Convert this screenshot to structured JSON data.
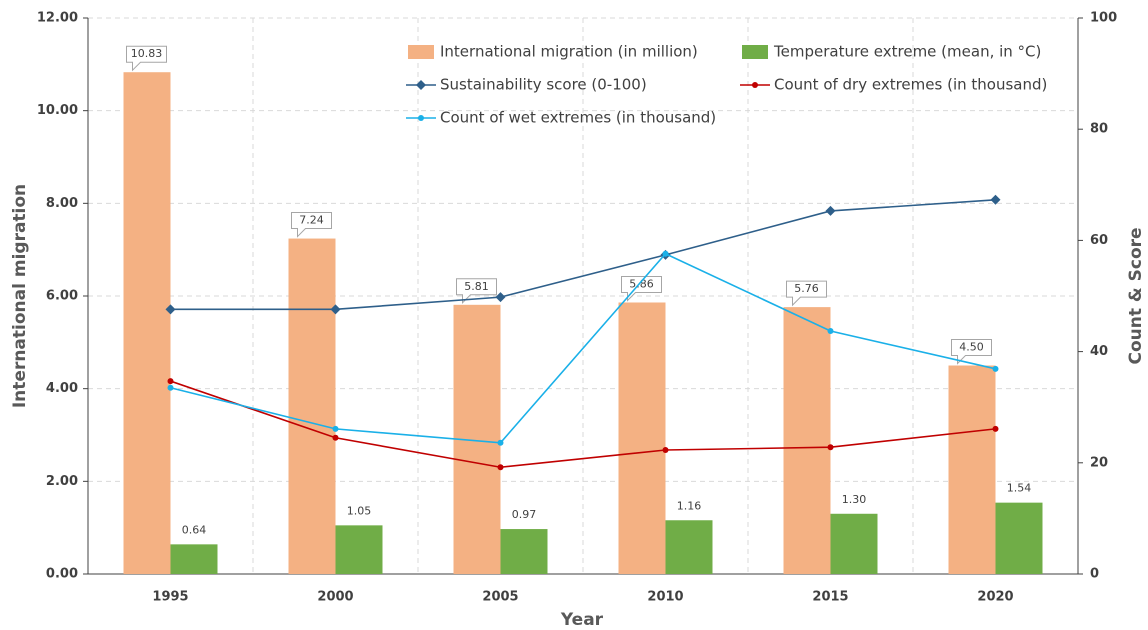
{
  "chart_data": {
    "type": "bar-line",
    "x_label": "Year",
    "y_label": "International migration",
    "y2_label": "Count & Score",
    "categories": [
      "1995",
      "2000",
      "2005",
      "2010",
      "2015",
      "2020"
    ],
    "series": [
      {
        "name": "International migration (in million)",
        "kind": "bar",
        "color": "#f4b183",
        "values": [
          10.83,
          7.24,
          5.81,
          5.86,
          5.76,
          4.5
        ],
        "value_labels": [
          "10.83",
          "7.24",
          "5.81",
          "5.86",
          "5.76",
          "4.50"
        ]
      },
      {
        "name": "Temperature extreme (mean, in °C)",
        "kind": "bar",
        "color": "#70ad47",
        "values": [
          0.64,
          1.05,
          0.97,
          1.16,
          1.3,
          1.54
        ],
        "value_labels": [
          "0.64",
          "1.05",
          "0.97",
          "1.16",
          "1.30",
          "1.54"
        ]
      },
      {
        "name": "Sustainability score (0-100)",
        "kind": "line",
        "marker": "diamond",
        "axis": "y2",
        "color": "#2e5f8a",
        "values": [
          47.6,
          47.6,
          49.8,
          57.4,
          65.3,
          67.3
        ]
      },
      {
        "name": "Count of dry extremes (in thousand)",
        "kind": "line",
        "marker": "circle",
        "axis": "y2",
        "color": "#c00000",
        "values": [
          34.7,
          24.5,
          19.2,
          22.3,
          22.8,
          26.1
        ]
      },
      {
        "name": "Count of wet extremes (in thousand)",
        "kind": "line",
        "marker": "circle",
        "axis": "y2",
        "color": "#1ab0e8",
        "values": [
          33.5,
          26.1,
          23.6,
          57.6,
          43.7,
          36.9
        ]
      }
    ],
    "ylim": [
      0,
      12
    ],
    "yticks": [
      {
        "value": 0,
        "label": "0.00"
      },
      {
        "value": 2,
        "label": "2.00"
      },
      {
        "value": 4,
        "label": "4.00"
      },
      {
        "value": 6,
        "label": "6.00"
      },
      {
        "value": 8,
        "label": "8.00"
      },
      {
        "value": 10,
        "label": "10.00"
      },
      {
        "value": 12,
        "label": "12.00"
      }
    ],
    "y2lim": [
      0,
      100
    ],
    "y2ticks": [
      0,
      20,
      40,
      60,
      80,
      100
    ],
    "grid": true
  }
}
